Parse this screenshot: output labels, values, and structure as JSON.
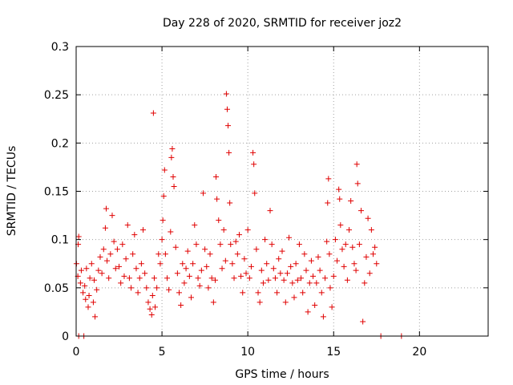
{
  "chart_data": {
    "type": "scatter",
    "title": "Day 228 of 2020, SRMTID for receiver joz2",
    "xlabel": "GPS time / hours",
    "ylabel": "SRMTID / TECUs",
    "xlim": [
      0,
      24
    ],
    "ylim": [
      0,
      0.3
    ],
    "xticks": [
      "0",
      "5",
      "10",
      "15",
      "20"
    ],
    "xtick_values": [
      0,
      5,
      10,
      15,
      20
    ],
    "yticks": [
      "0",
      "0.05",
      "0.1",
      "0.15",
      "0.2",
      "0.25",
      "0.3"
    ],
    "ytick_values": [
      0,
      0.05,
      0.1,
      0.15,
      0.2,
      0.25,
      0.3
    ],
    "grid": true,
    "marker": "+",
    "color": "#e00000",
    "series": [
      {
        "points": [
          [
            0.02,
            0.075
          ],
          [
            0.1,
            0.062
          ],
          [
            0.12,
            0.095
          ],
          [
            0.15,
            0.103
          ],
          [
            0.25,
            0.055
          ],
          [
            0.3,
            0.068
          ],
          [
            0.4,
            0.045
          ],
          [
            0.5,
            0.052
          ],
          [
            0.55,
            0.038
          ],
          [
            0.6,
            0.07
          ],
          [
            0.7,
            0.03
          ],
          [
            0.75,
            0.042
          ],
          [
            0.8,
            0.06
          ],
          [
            0.9,
            0.075
          ],
          [
            1.0,
            0.035
          ],
          [
            1.05,
            0.058
          ],
          [
            1.1,
            0.02
          ],
          [
            1.2,
            0.048
          ],
          [
            1.3,
            0.068
          ],
          [
            1.4,
            0.082
          ],
          [
            1.5,
            0.065
          ],
          [
            1.6,
            0.09
          ],
          [
            1.7,
            0.112
          ],
          [
            1.75,
            0.132
          ],
          [
            1.8,
            0.078
          ],
          [
            1.9,
            0.06
          ],
          [
            2.0,
            0.085
          ],
          [
            2.1,
            0.125
          ],
          [
            2.2,
            0.098
          ],
          [
            2.3,
            0.07
          ],
          [
            2.4,
            0.09
          ],
          [
            2.5,
            0.072
          ],
          [
            2.6,
            0.055
          ],
          [
            2.7,
            0.095
          ],
          [
            2.8,
            0.062
          ],
          [
            2.9,
            0.08
          ],
          [
            3.0,
            0.115
          ],
          [
            3.1,
            0.06
          ],
          [
            3.2,
            0.05
          ],
          [
            3.3,
            0.085
          ],
          [
            3.4,
            0.105
          ],
          [
            3.5,
            0.07
          ],
          [
            3.6,
            0.045
          ],
          [
            3.7,
            0.06
          ],
          [
            3.8,
            0.075
          ],
          [
            3.9,
            0.11
          ],
          [
            4.0,
            0.065
          ],
          [
            4.1,
            0.05
          ],
          [
            4.2,
            0.035
          ],
          [
            4.3,
            0.028
          ],
          [
            4.4,
            0.022
          ],
          [
            4.45,
            0.042
          ],
          [
            4.5,
            0.231
          ],
          [
            4.55,
            0.06
          ],
          [
            4.6,
            0.03
          ],
          [
            4.7,
            0.05
          ],
          [
            4.8,
            0.085
          ],
          [
            4.9,
            0.075
          ],
          [
            5.0,
            0.1
          ],
          [
            5.05,
            0.12
          ],
          [
            5.1,
            0.145
          ],
          [
            5.15,
            0.172
          ],
          [
            5.2,
            0.085
          ],
          [
            5.3,
            0.06
          ],
          [
            5.4,
            0.048
          ],
          [
            5.5,
            0.108
          ],
          [
            5.55,
            0.185
          ],
          [
            5.6,
            0.194
          ],
          [
            5.65,
            0.165
          ],
          [
            5.7,
            0.155
          ],
          [
            5.8,
            0.092
          ],
          [
            5.9,
            0.065
          ],
          [
            6.0,
            0.045
          ],
          [
            6.1,
            0.032
          ],
          [
            6.2,
            0.075
          ],
          [
            6.3,
            0.055
          ],
          [
            6.4,
            0.07
          ],
          [
            6.5,
            0.088
          ],
          [
            6.6,
            0.062
          ],
          [
            6.7,
            0.04
          ],
          [
            6.8,
            0.075
          ],
          [
            6.9,
            0.115
          ],
          [
            7.0,
            0.095
          ],
          [
            7.1,
            0.06
          ],
          [
            7.2,
            0.052
          ],
          [
            7.3,
            0.068
          ],
          [
            7.4,
            0.148
          ],
          [
            7.5,
            0.09
          ],
          [
            7.6,
            0.072
          ],
          [
            7.7,
            0.05
          ],
          [
            7.8,
            0.085
          ],
          [
            7.9,
            0.06
          ],
          [
            8.0,
            0.035
          ],
          [
            8.1,
            0.058
          ],
          [
            8.15,
            0.165
          ],
          [
            8.2,
            0.142
          ],
          [
            8.3,
            0.12
          ],
          [
            8.4,
            0.095
          ],
          [
            8.5,
            0.07
          ],
          [
            8.6,
            0.11
          ],
          [
            8.7,
            0.078
          ],
          [
            8.75,
            0.251
          ],
          [
            8.8,
            0.235
          ],
          [
            8.85,
            0.218
          ],
          [
            8.9,
            0.19
          ],
          [
            8.95,
            0.138
          ],
          [
            9.0,
            0.095
          ],
          [
            9.1,
            0.075
          ],
          [
            9.2,
            0.06
          ],
          [
            9.3,
            0.098
          ],
          [
            9.4,
            0.085
          ],
          [
            9.5,
            0.105
          ],
          [
            9.6,
            0.062
          ],
          [
            9.7,
            0.045
          ],
          [
            9.8,
            0.08
          ],
          [
            9.9,
            0.065
          ],
          [
            10.0,
            0.11
          ],
          [
            10.1,
            0.06
          ],
          [
            10.2,
            0.072
          ],
          [
            10.3,
            0.19
          ],
          [
            10.35,
            0.178
          ],
          [
            10.4,
            0.148
          ],
          [
            10.5,
            0.09
          ],
          [
            10.6,
            0.045
          ],
          [
            10.7,
            0.035
          ],
          [
            10.8,
            0.068
          ],
          [
            10.9,
            0.055
          ],
          [
            11.0,
            0.1
          ],
          [
            11.1,
            0.075
          ],
          [
            11.2,
            0.058
          ],
          [
            11.3,
            0.13
          ],
          [
            11.4,
            0.095
          ],
          [
            11.5,
            0.07
          ],
          [
            11.6,
            0.06
          ],
          [
            11.7,
            0.045
          ],
          [
            11.8,
            0.08
          ],
          [
            11.9,
            0.065
          ],
          [
            12.0,
            0.088
          ],
          [
            12.1,
            0.058
          ],
          [
            12.2,
            0.035
          ],
          [
            12.3,
            0.065
          ],
          [
            12.4,
            0.102
          ],
          [
            12.5,
            0.072
          ],
          [
            12.6,
            0.055
          ],
          [
            12.7,
            0.04
          ],
          [
            12.8,
            0.075
          ],
          [
            12.9,
            0.058
          ],
          [
            13.0,
            0.095
          ],
          [
            13.1,
            0.06
          ],
          [
            13.2,
            0.045
          ],
          [
            13.3,
            0.085
          ],
          [
            13.4,
            0.068
          ],
          [
            13.5,
            0.025
          ],
          [
            13.6,
            0.055
          ],
          [
            13.7,
            0.078
          ],
          [
            13.8,
            0.062
          ],
          [
            13.9,
            0.032
          ],
          [
            14.0,
            0.055
          ],
          [
            14.1,
            0.082
          ],
          [
            14.2,
            0.068
          ],
          [
            14.3,
            0.045
          ],
          [
            14.4,
            0.02
          ],
          [
            14.5,
            0.06
          ],
          [
            14.6,
            0.098
          ],
          [
            14.65,
            0.138
          ],
          [
            14.7,
            0.163
          ],
          [
            14.75,
            0.085
          ],
          [
            14.8,
            0.05
          ],
          [
            14.9,
            0.03
          ],
          [
            15.0,
            0.062
          ],
          [
            15.1,
            0.1
          ],
          [
            15.2,
            0.078
          ],
          [
            15.3,
            0.152
          ],
          [
            15.35,
            0.142
          ],
          [
            15.4,
            0.115
          ],
          [
            15.5,
            0.09
          ],
          [
            15.6,
            0.072
          ],
          [
            15.7,
            0.095
          ],
          [
            15.8,
            0.058
          ],
          [
            15.9,
            0.11
          ],
          [
            16.0,
            0.14
          ],
          [
            16.1,
            0.092
          ],
          [
            16.2,
            0.075
          ],
          [
            16.3,
            0.068
          ],
          [
            16.35,
            0.178
          ],
          [
            16.4,
            0.158
          ],
          [
            16.5,
            0.095
          ],
          [
            16.6,
            0.13
          ],
          [
            16.7,
            0.015
          ],
          [
            16.8,
            0.055
          ],
          [
            16.9,
            0.082
          ],
          [
            17.0,
            0.122
          ],
          [
            17.1,
            0.065
          ],
          [
            17.2,
            0.11
          ],
          [
            17.3,
            0.085
          ],
          [
            17.4,
            0.092
          ],
          [
            17.5,
            0.075
          ],
          [
            0.15,
            0.0
          ],
          [
            0.45,
            0.0
          ],
          [
            17.75,
            0.0
          ],
          [
            18.95,
            0.0
          ]
        ]
      }
    ]
  }
}
